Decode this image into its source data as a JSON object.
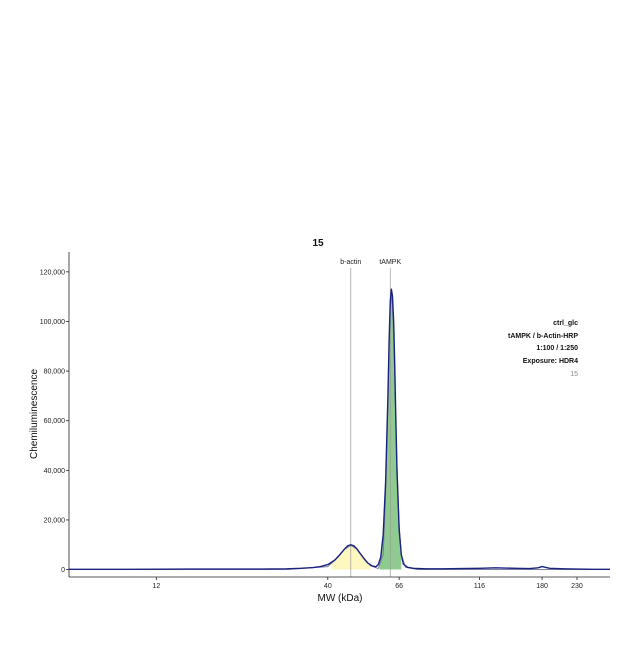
{
  "chart_data": {
    "type": "line",
    "title": "15",
    "xlabel": "MW (kDa)",
    "ylabel": "Chemiluminescence",
    "x_scale": "log",
    "xlim": [
      6.5,
      290
    ],
    "ylim": [
      -3000,
      128000
    ],
    "x_ticks": [
      12,
      40,
      66,
      116,
      180,
      230
    ],
    "x_tick_labels": [
      "12",
      "40",
      "66",
      "116",
      "180",
      "230"
    ],
    "y_ticks": [
      0,
      20000,
      40000,
      60000,
      80000,
      100000,
      120000
    ],
    "y_tick_labels": [
      "0",
      "20,000",
      "40,000",
      "60,000",
      "80,000",
      "100,000",
      "120,000"
    ],
    "grid": false,
    "bands": [
      {
        "label": "b-actin",
        "mw": 47,
        "peak": 10000,
        "fill_color": "#fdf7c0",
        "range": [
          41,
          54
        ]
      },
      {
        "label": "tAMPK",
        "mw": 62,
        "peak": 113000,
        "fill_color": "#8fcb8f",
        "range": [
          57.5,
          67
        ]
      }
    ],
    "series": [
      {
        "color": "#1a237e",
        "x": [
          6.5,
          10,
          15,
          20,
          25,
          30,
          33,
          36,
          38,
          40,
          42,
          43.5,
          45,
          46,
          47,
          48,
          49,
          50,
          51.5,
          53,
          54.5,
          56,
          57,
          58,
          59,
          60,
          61,
          61.5,
          62,
          62.5,
          63,
          63.5,
          64,
          64.5,
          65,
          66,
          67,
          68,
          70,
          73,
          76,
          80,
          90,
          100,
          116,
          130,
          150,
          165,
          175,
          180,
          190,
          210,
          230,
          260,
          290
        ],
        "y": [
          100,
          100,
          200,
          200,
          200,
          300,
          500,
          800,
          1200,
          2000,
          3800,
          6000,
          8300,
          9600,
          10000,
          9600,
          8400,
          6800,
          4500,
          2600,
          1500,
          1100,
          2000,
          5000,
          14000,
          35000,
          70000,
          92000,
          108000,
          113000,
          110000,
          100000,
          82000,
          60000,
          40000,
          16000,
          6000,
          2200,
          900,
          500,
          400,
          300,
          300,
          400,
          500,
          700,
          500,
          400,
          700,
          1200,
          500,
          300,
          200,
          100,
          100
        ]
      },
      {
        "color": "#7f7fa0",
        "x": [
          6.5,
          30,
          40,
          43,
          45,
          47,
          49,
          51,
          54,
          57,
          59,
          60,
          61,
          61.5,
          62,
          62.5,
          63,
          63.5,
          64,
          65,
          66,
          67,
          69,
          75,
          290
        ],
        "y": [
          0,
          0,
          1200,
          5000,
          8200,
          9700,
          8300,
          5200,
          1500,
          400,
          6000,
          30000,
          68000,
          90000,
          106000,
          110000,
          106000,
          94000,
          76000,
          42000,
          18000,
          6000,
          900,
          0,
          0
        ]
      }
    ],
    "annotations": [
      "ctrl_glc",
      "tAMPK /  b-Actin-HRP",
      "1:100 / 1:250",
      "Exposure: HDR4",
      "15"
    ]
  }
}
